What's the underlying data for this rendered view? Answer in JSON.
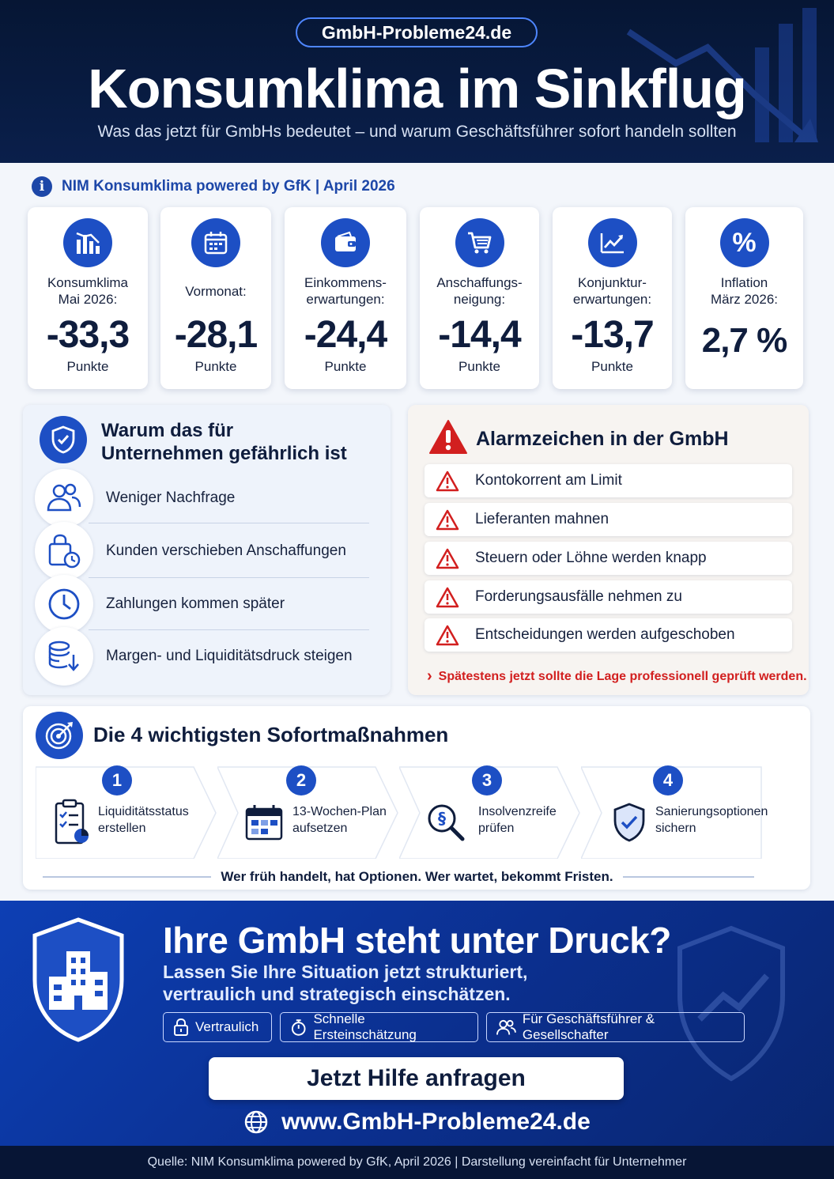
{
  "header": {
    "brand": "GmbH-Probleme24.de",
    "title": "Konsumklima im Sinkflug",
    "subtitle": "Was das jetzt für GmbHs bedeutet – und warum Geschäftsführer sofort handeln sollten"
  },
  "source_line": {
    "icon": "info-icon",
    "text": "NIM Konsumklima powered by GfK  |  April 2026"
  },
  "stats": [
    {
      "icon": "chart-down-icon",
      "label": "Konsumklima\nMai 2026:",
      "value": "-33,3",
      "unit": "Punkte"
    },
    {
      "icon": "calendar-icon",
      "label": "Vormonat:",
      "value": "-28,1",
      "unit": "Punkte"
    },
    {
      "icon": "wallet-icon",
      "label": "Einkommens-\nerwartungen:",
      "value": "-24,4",
      "unit": "Punkte"
    },
    {
      "icon": "cart-icon",
      "label": "Anschaffungs-\nneigung:",
      "value": "-14,4",
      "unit": "Punkte"
    },
    {
      "icon": "trend-icon",
      "label": "Konjunktur-\nerwartungen:",
      "value": "-13,7",
      "unit": "Punkte"
    },
    {
      "icon": "percent-icon",
      "label": "Inflation\nMärz 2026:",
      "value": "2,7 %",
      "unit": ""
    }
  ],
  "risks": {
    "title": "Warum das für\nUnternehmen gefährlich ist",
    "items": [
      {
        "icon": "users-icon",
        "text": "Weniger Nachfrage"
      },
      {
        "icon": "shopping-bag-clock-icon",
        "text": "Kunden verschieben Anschaffungen"
      },
      {
        "icon": "clock-icon",
        "text": "Zahlungen kommen später"
      },
      {
        "icon": "coins-down-icon",
        "text": "Margen- und Liquiditätsdruck steigen"
      }
    ]
  },
  "alarms": {
    "title": "Alarmzeichen in der GmbH",
    "items": [
      "Kontokorrent am Limit",
      "Lieferanten mahnen",
      "Steuern oder Löhne werden knapp",
      "Forderungsausfälle nehmen zu",
      "Entscheidungen werden aufgeschoben"
    ],
    "note": "Spätestens jetzt sollte die Lage professionell geprüft werden."
  },
  "measures": {
    "title": "Die 4 wichtigsten Sofortmaßnahmen",
    "steps": [
      {
        "num": "1",
        "icon": "checklist-icon",
        "text": "Liquiditätsstatus\nerstellen"
      },
      {
        "num": "2",
        "icon": "calendar-plan-icon",
        "text": "13-Wochen-Plan\naufsetzen"
      },
      {
        "num": "3",
        "icon": "paragraph-search-icon",
        "text": "Insolvenzreife\nprüfen"
      },
      {
        "num": "4",
        "icon": "shield-check-icon",
        "text": "Sanierungsoptionen\nsichern"
      }
    ],
    "motto": "Wer früh handelt, hat Optionen. Wer wartet, bekommt Fristen."
  },
  "cta": {
    "title": "Ihre GmbH steht unter Druck?",
    "subtitle": "Lassen Sie Ihre Situation jetzt strukturiert,\nvertraulich und strategisch einschätzen.",
    "chips": [
      {
        "icon": "lock-icon",
        "text": "Vertraulich"
      },
      {
        "icon": "stopwatch-icon",
        "text": "Schnelle Ersteinschätzung"
      },
      {
        "icon": "users-icon",
        "text": "Für Geschäftsführer & Gesellschafter"
      }
    ],
    "button": "Jetzt Hilfe anfragen",
    "url": "www.GmbH-Probleme24.de"
  },
  "footer": "Quelle: NIM Konsumklima powered by GfK, April 2026   |   Darstellung vereinfacht für Unternehmer",
  "colors": {
    "navy": "#0a1f4b",
    "accent_blue": "#1d4fc4",
    "alarm_red": "#d21f1f"
  }
}
